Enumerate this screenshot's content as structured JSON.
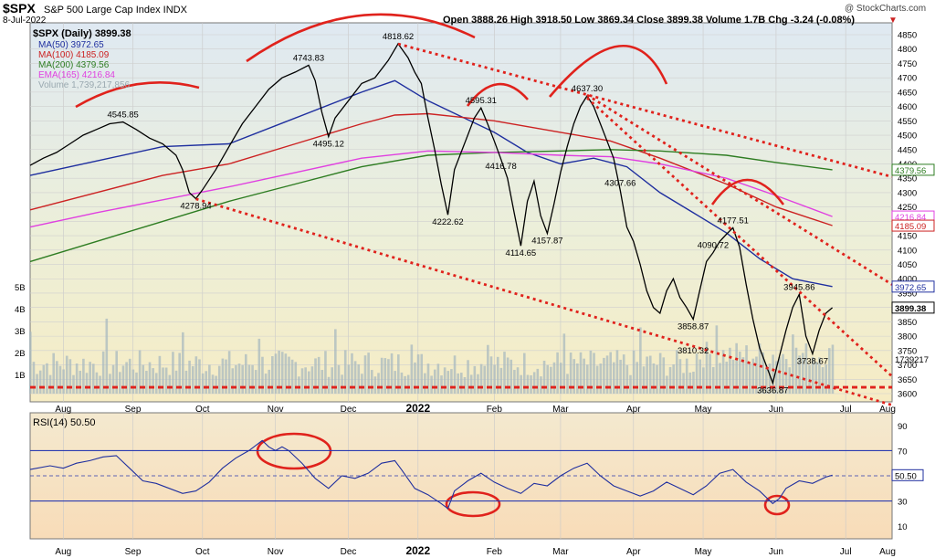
{
  "header": {
    "symbol_line": "$SPX",
    "name_line": "S&P 500 Large Cap Index INDX",
    "date": "8-Jul-2022",
    "ohlc": "Open 3888.26 High 3918.50 Low 3869.34 Close 3899.38 Volume 1.7B Chg -3.24 (-0.08%)",
    "copyright": "@ StockCharts.com"
  },
  "legend": [
    {
      "label": "$SPX (Daily) 3899.38",
      "color": "#000000"
    },
    {
      "label": "MA(50) 3972.65",
      "color": "#1f2f9f"
    },
    {
      "label": "MA(100) 4185.09",
      "color": "#cc2222"
    },
    {
      "label": "MA(200) 4379.56",
      "color": "#2e7d22"
    },
    {
      "label": "EMA(165) 4216.84",
      "color": "#e040e0"
    },
    {
      "label": "Volume 1,739,217,856",
      "color": "#9aa9b0"
    }
  ],
  "rsi_label": "RSI(14) 50.50",
  "chart_data": [
    {
      "type": "line",
      "title": "$SPX S&P 500 Large Cap Index INDX",
      "x_labels": [
        "Aug",
        "Sep",
        "Oct",
        "Nov",
        "Dec",
        "2022",
        "Feb",
        "Mar",
        "Apr",
        "May",
        "Jun",
        "Jul",
        "Aug"
      ],
      "ylim": [
        3600,
        4850
      ],
      "y_ticks": [
        3600,
        3650,
        3700,
        3750,
        3800,
        3850,
        3900,
        3950,
        4000,
        4050,
        4100,
        4150,
        4200,
        4250,
        4300,
        4350,
        4400,
        4450,
        4500,
        4550,
        4600,
        4650,
        4700,
        4750,
        4800,
        4850
      ],
      "grid": true,
      "price_labels": [
        "4545.85",
        "4278.94",
        "4743.83",
        "4495.12",
        "4818.62",
        "4222.62",
        "4595.31",
        "4416.78",
        "4114.65",
        "4157.87",
        "4637.30",
        "4307.66",
        "4090.72",
        "3858.87",
        "3810.32",
        "4177.51",
        "3945.86",
        "3738.67",
        "3636.87"
      ],
      "right_value_tags": [
        "4379.56",
        "4216.84",
        "4185.09",
        "3972.65",
        "3899.38"
      ],
      "volume_axis": [
        "1B",
        "2B",
        "3B",
        "4B",
        "5B"
      ],
      "volume_tag": "1739217",
      "series": [
        {
          "name": "$SPX (Daily)",
          "color": "#000000",
          "points": [
            [
              0,
              4395
            ],
            [
              4,
              4420
            ],
            [
              8,
              4440
            ],
            [
              12,
              4470
            ],
            [
              16,
              4500
            ],
            [
              20,
              4520
            ],
            [
              24,
              4540
            ],
            [
              28,
              4545.85
            ],
            [
              32,
              4520
            ],
            [
              36,
              4490
            ],
            [
              40,
              4470
            ],
            [
              44,
              4430
            ],
            [
              46,
              4380
            ],
            [
              48,
              4300
            ],
            [
              50,
              4278.94
            ],
            [
              52,
              4310
            ],
            [
              56,
              4380
            ],
            [
              60,
              4460
            ],
            [
              64,
              4540
            ],
            [
              68,
              4600
            ],
            [
              72,
              4660
            ],
            [
              76,
              4700
            ],
            [
              80,
              4720
            ],
            [
              84,
              4743.83
            ],
            [
              86,
              4690
            ],
            [
              88,
              4580
            ],
            [
              90,
              4495.12
            ],
            [
              92,
              4560
            ],
            [
              96,
              4620
            ],
            [
              100,
              4680
            ],
            [
              104,
              4700
            ],
            [
              108,
              4760
            ],
            [
              111,
              4818.62
            ],
            [
              114,
              4770
            ],
            [
              116,
              4720
            ],
            [
              118,
              4680
            ],
            [
              120,
              4560
            ],
            [
              122,
              4450
            ],
            [
              124,
              4330
            ],
            [
              126,
              4222.62
            ],
            [
              128,
              4380
            ],
            [
              130,
              4440
            ],
            [
              132,
              4500
            ],
            [
              134,
              4560
            ],
            [
              136,
              4595.31
            ],
            [
              138,
              4540
            ],
            [
              140,
              4480
            ],
            [
              142,
              4416.78
            ],
            [
              144,
              4350
            ],
            [
              146,
              4230
            ],
            [
              148,
              4114.65
            ],
            [
              150,
              4270
            ],
            [
              152,
              4340
            ],
            [
              154,
              4220
            ],
            [
              156,
              4157.87
            ],
            [
              158,
              4260
            ],
            [
              160,
              4370
            ],
            [
              162,
              4460
            ],
            [
              164,
              4540
            ],
            [
              166,
              4600
            ],
            [
              168,
              4637.3
            ],
            [
              170,
              4600
            ],
            [
              172,
              4540
            ],
            [
              174,
              4480
            ],
            [
              176,
              4420
            ],
            [
              178,
              4307.66
            ],
            [
              180,
              4180
            ],
            [
              182,
              4130
            ],
            [
              184,
              4050
            ],
            [
              186,
              3958
            ],
            [
              188,
              3900
            ],
            [
              190,
              3880
            ],
            [
              192,
              3958
            ],
            [
              194,
              4000
            ],
            [
              196,
              3935
            ],
            [
              198,
              3900
            ],
            [
              200,
              3858.87
            ],
            [
              202,
              3960
            ],
            [
              204,
              4060
            ],
            [
              206,
              4090.72
            ],
            [
              208,
              4130
            ],
            [
              210,
              4155
            ],
            [
              212,
              4177.51
            ],
            [
              214,
              4110
            ],
            [
              216,
              3980
            ],
            [
              218,
              3860
            ],
            [
              220,
              3760
            ],
            [
              222,
              3700
            ],
            [
              224,
              3636.87
            ],
            [
              226,
              3730
            ],
            [
              228,
              3820
            ],
            [
              230,
              3900
            ],
            [
              232,
              3945.86
            ],
            [
              234,
              3800
            ],
            [
              236,
              3738.67
            ],
            [
              238,
              3820
            ],
            [
              240,
              3880
            ],
            [
              242,
              3899.38
            ]
          ]
        },
        {
          "name": "MA(50)",
          "color": "#1f2f9f",
          "points": [
            [
              0,
              4360
            ],
            [
              20,
              4410
            ],
            [
              40,
              4460
            ],
            [
              60,
              4470
            ],
            [
              80,
              4560
            ],
            [
              100,
              4650
            ],
            [
              110,
              4690
            ],
            [
              120,
              4620
            ],
            [
              140,
              4510
            ],
            [
              150,
              4440
            ],
            [
              160,
              4400
            ],
            [
              170,
              4420
            ],
            [
              180,
              4390
            ],
            [
              190,
              4300
            ],
            [
              200,
              4230
            ],
            [
              210,
              4160
            ],
            [
              220,
              4070
            ],
            [
              230,
              4000
            ],
            [
              242,
              3972.65
            ]
          ]
        },
        {
          "name": "MA(100)",
          "color": "#cc2222",
          "points": [
            [
              0,
              4240
            ],
            [
              20,
              4300
            ],
            [
              40,
              4360
            ],
            [
              60,
              4400
            ],
            [
              80,
              4470
            ],
            [
              100,
              4540
            ],
            [
              110,
              4570
            ],
            [
              120,
              4575
            ],
            [
              140,
              4550
            ],
            [
              160,
              4510
            ],
            [
              175,
              4480
            ],
            [
              190,
              4420
            ],
            [
              210,
              4330
            ],
            [
              225,
              4250
            ],
            [
              242,
              4185.09
            ]
          ]
        },
        {
          "name": "MA(200)",
          "color": "#2e7d22",
          "points": [
            [
              0,
              4060
            ],
            [
              20,
              4130
            ],
            [
              40,
              4200
            ],
            [
              60,
              4270
            ],
            [
              80,
              4330
            ],
            [
              100,
              4390
            ],
            [
              120,
              4430
            ],
            [
              140,
              4440
            ],
            [
              160,
              4445
            ],
            [
              175,
              4450
            ],
            [
              190,
              4445
            ],
            [
              210,
              4430
            ],
            [
              225,
              4405
            ],
            [
              242,
              4379.56
            ]
          ]
        },
        {
          "name": "EMA(165)",
          "color": "#e040e0",
          "points": [
            [
              0,
              4180
            ],
            [
              20,
              4230
            ],
            [
              40,
              4275
            ],
            [
              60,
              4320
            ],
            [
              80,
              4370
            ],
            [
              100,
              4420
            ],
            [
              120,
              4445
            ],
            [
              140,
              4440
            ],
            [
              160,
              4430
            ],
            [
              175,
              4425
            ],
            [
              190,
              4400
            ],
            [
              210,
              4350
            ],
            [
              225,
              4290
            ],
            [
              242,
              4216.84
            ]
          ]
        }
      ],
      "annotation_lines": [
        {
          "name": "upper-trendline",
          "style": "dotted",
          "color": "#e0221c",
          "from": [
            111,
            4818
          ],
          "to": [
            260,
            4355
          ]
        },
        {
          "name": "lower-trendline",
          "style": "dotted",
          "color": "#e0221c",
          "from": [
            50,
            4278
          ],
          "to": [
            260,
            3560
          ]
        },
        {
          "name": "steep-trendline-1",
          "style": "dotted",
          "color": "#e0221c",
          "from": [
            168,
            4640
          ],
          "to": [
            260,
            3980
          ]
        },
        {
          "name": "steep-trendline-2",
          "style": "dotted",
          "color": "#e0221c",
          "from": [
            168,
            4630
          ],
          "to": [
            260,
            3660
          ]
        },
        {
          "name": "support-line",
          "style": "dashed",
          "color": "#e0221c",
          "from": [
            0,
            3622
          ],
          "to": [
            260,
            3622
          ]
        }
      ]
    },
    {
      "type": "line",
      "title": "RSI(14)",
      "ylim": [
        0,
        100
      ],
      "y_ticks": [
        10,
        30,
        50,
        70,
        90
      ],
      "reference_lines": [
        30,
        50,
        70
      ],
      "last_value": "50.50",
      "series": [
        {
          "name": "RSI(14)",
          "color": "#1f2f9f",
          "points": [
            [
              0,
              55
            ],
            [
              6,
              58
            ],
            [
              10,
              56
            ],
            [
              14,
              60
            ],
            [
              18,
              62
            ],
            [
              22,
              65
            ],
            [
              26,
              66
            ],
            [
              30,
              56
            ],
            [
              34,
              46
            ],
            [
              38,
              44
            ],
            [
              42,
              40
            ],
            [
              46,
              36
            ],
            [
              50,
              38
            ],
            [
              54,
              45
            ],
            [
              58,
              56
            ],
            [
              62,
              64
            ],
            [
              66,
              70
            ],
            [
              68,
              74
            ],
            [
              70,
              78
            ],
            [
              72,
              73
            ],
            [
              74,
              70
            ],
            [
              76,
              73
            ],
            [
              78,
              70
            ],
            [
              82,
              60
            ],
            [
              86,
              48
            ],
            [
              90,
              40
            ],
            [
              94,
              50
            ],
            [
              98,
              48
            ],
            [
              102,
              52
            ],
            [
              106,
              60
            ],
            [
              110,
              62
            ],
            [
              112,
              55
            ],
            [
              116,
              40
            ],
            [
              120,
              35
            ],
            [
              124,
              28
            ],
            [
              126,
              24
            ],
            [
              128,
              38
            ],
            [
              132,
              46
            ],
            [
              136,
              52
            ],
            [
              140,
              45
            ],
            [
              144,
              40
            ],
            [
              148,
              36
            ],
            [
              152,
              44
            ],
            [
              156,
              42
            ],
            [
              160,
              50
            ],
            [
              164,
              56
            ],
            [
              168,
              60
            ],
            [
              172,
              50
            ],
            [
              176,
              42
            ],
            [
              180,
              38
            ],
            [
              184,
              34
            ],
            [
              188,
              38
            ],
            [
              192,
              45
            ],
            [
              196,
              40
            ],
            [
              200,
              35
            ],
            [
              204,
              42
            ],
            [
              208,
              52
            ],
            [
              212,
              55
            ],
            [
              216,
              45
            ],
            [
              220,
              38
            ],
            [
              224,
              28
            ],
            [
              226,
              32
            ],
            [
              228,
              40
            ],
            [
              232,
              46
            ],
            [
              236,
              44
            ],
            [
              240,
              49
            ],
            [
              242,
              50.5
            ]
          ]
        }
      ]
    }
  ]
}
